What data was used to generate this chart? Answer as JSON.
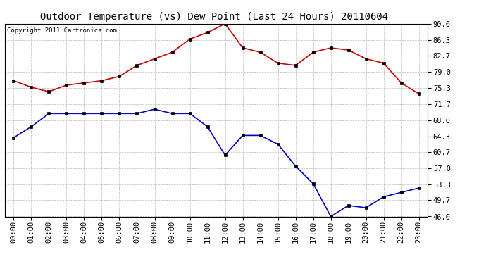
{
  "title": "Outdoor Temperature (vs) Dew Point (Last 24 Hours) 20110604",
  "copyright_text": "Copyright 2011 Cartronics.com",
  "x_labels": [
    "00:00",
    "01:00",
    "02:00",
    "03:00",
    "04:00",
    "05:00",
    "06:00",
    "07:00",
    "08:00",
    "09:00",
    "10:00",
    "11:00",
    "12:00",
    "13:00",
    "14:00",
    "15:00",
    "16:00",
    "17:00",
    "18:00",
    "19:00",
    "20:00",
    "21:00",
    "22:00",
    "23:00"
  ],
  "red_data": [
    77.0,
    75.5,
    74.5,
    76.0,
    76.5,
    77.0,
    78.0,
    80.5,
    82.0,
    83.5,
    86.5,
    88.0,
    90.0,
    84.5,
    83.5,
    81.0,
    80.5,
    83.5,
    84.5,
    84.0,
    82.0,
    81.0,
    76.5,
    74.0
  ],
  "blue_data": [
    64.0,
    66.5,
    69.5,
    69.5,
    69.5,
    69.5,
    69.5,
    69.5,
    70.5,
    69.5,
    69.5,
    66.5,
    60.0,
    64.5,
    64.5,
    62.5,
    57.5,
    53.5,
    46.0,
    48.5,
    48.0,
    50.5,
    51.5,
    52.5
  ],
  "y_ticks": [
    46.0,
    49.7,
    53.3,
    57.0,
    60.7,
    64.3,
    68.0,
    71.7,
    75.3,
    79.0,
    82.7,
    86.3,
    90.0
  ],
  "y_min": 46.0,
  "y_max": 90.0,
  "red_color": "#cc0000",
  "blue_color": "#0000cc",
  "bg_color": "#ffffff",
  "plot_bg_color": "#ffffff",
  "grid_color": "#bbbbbb",
  "title_fontsize": 10,
  "copyright_fontsize": 6.5,
  "tick_fontsize": 7.5
}
